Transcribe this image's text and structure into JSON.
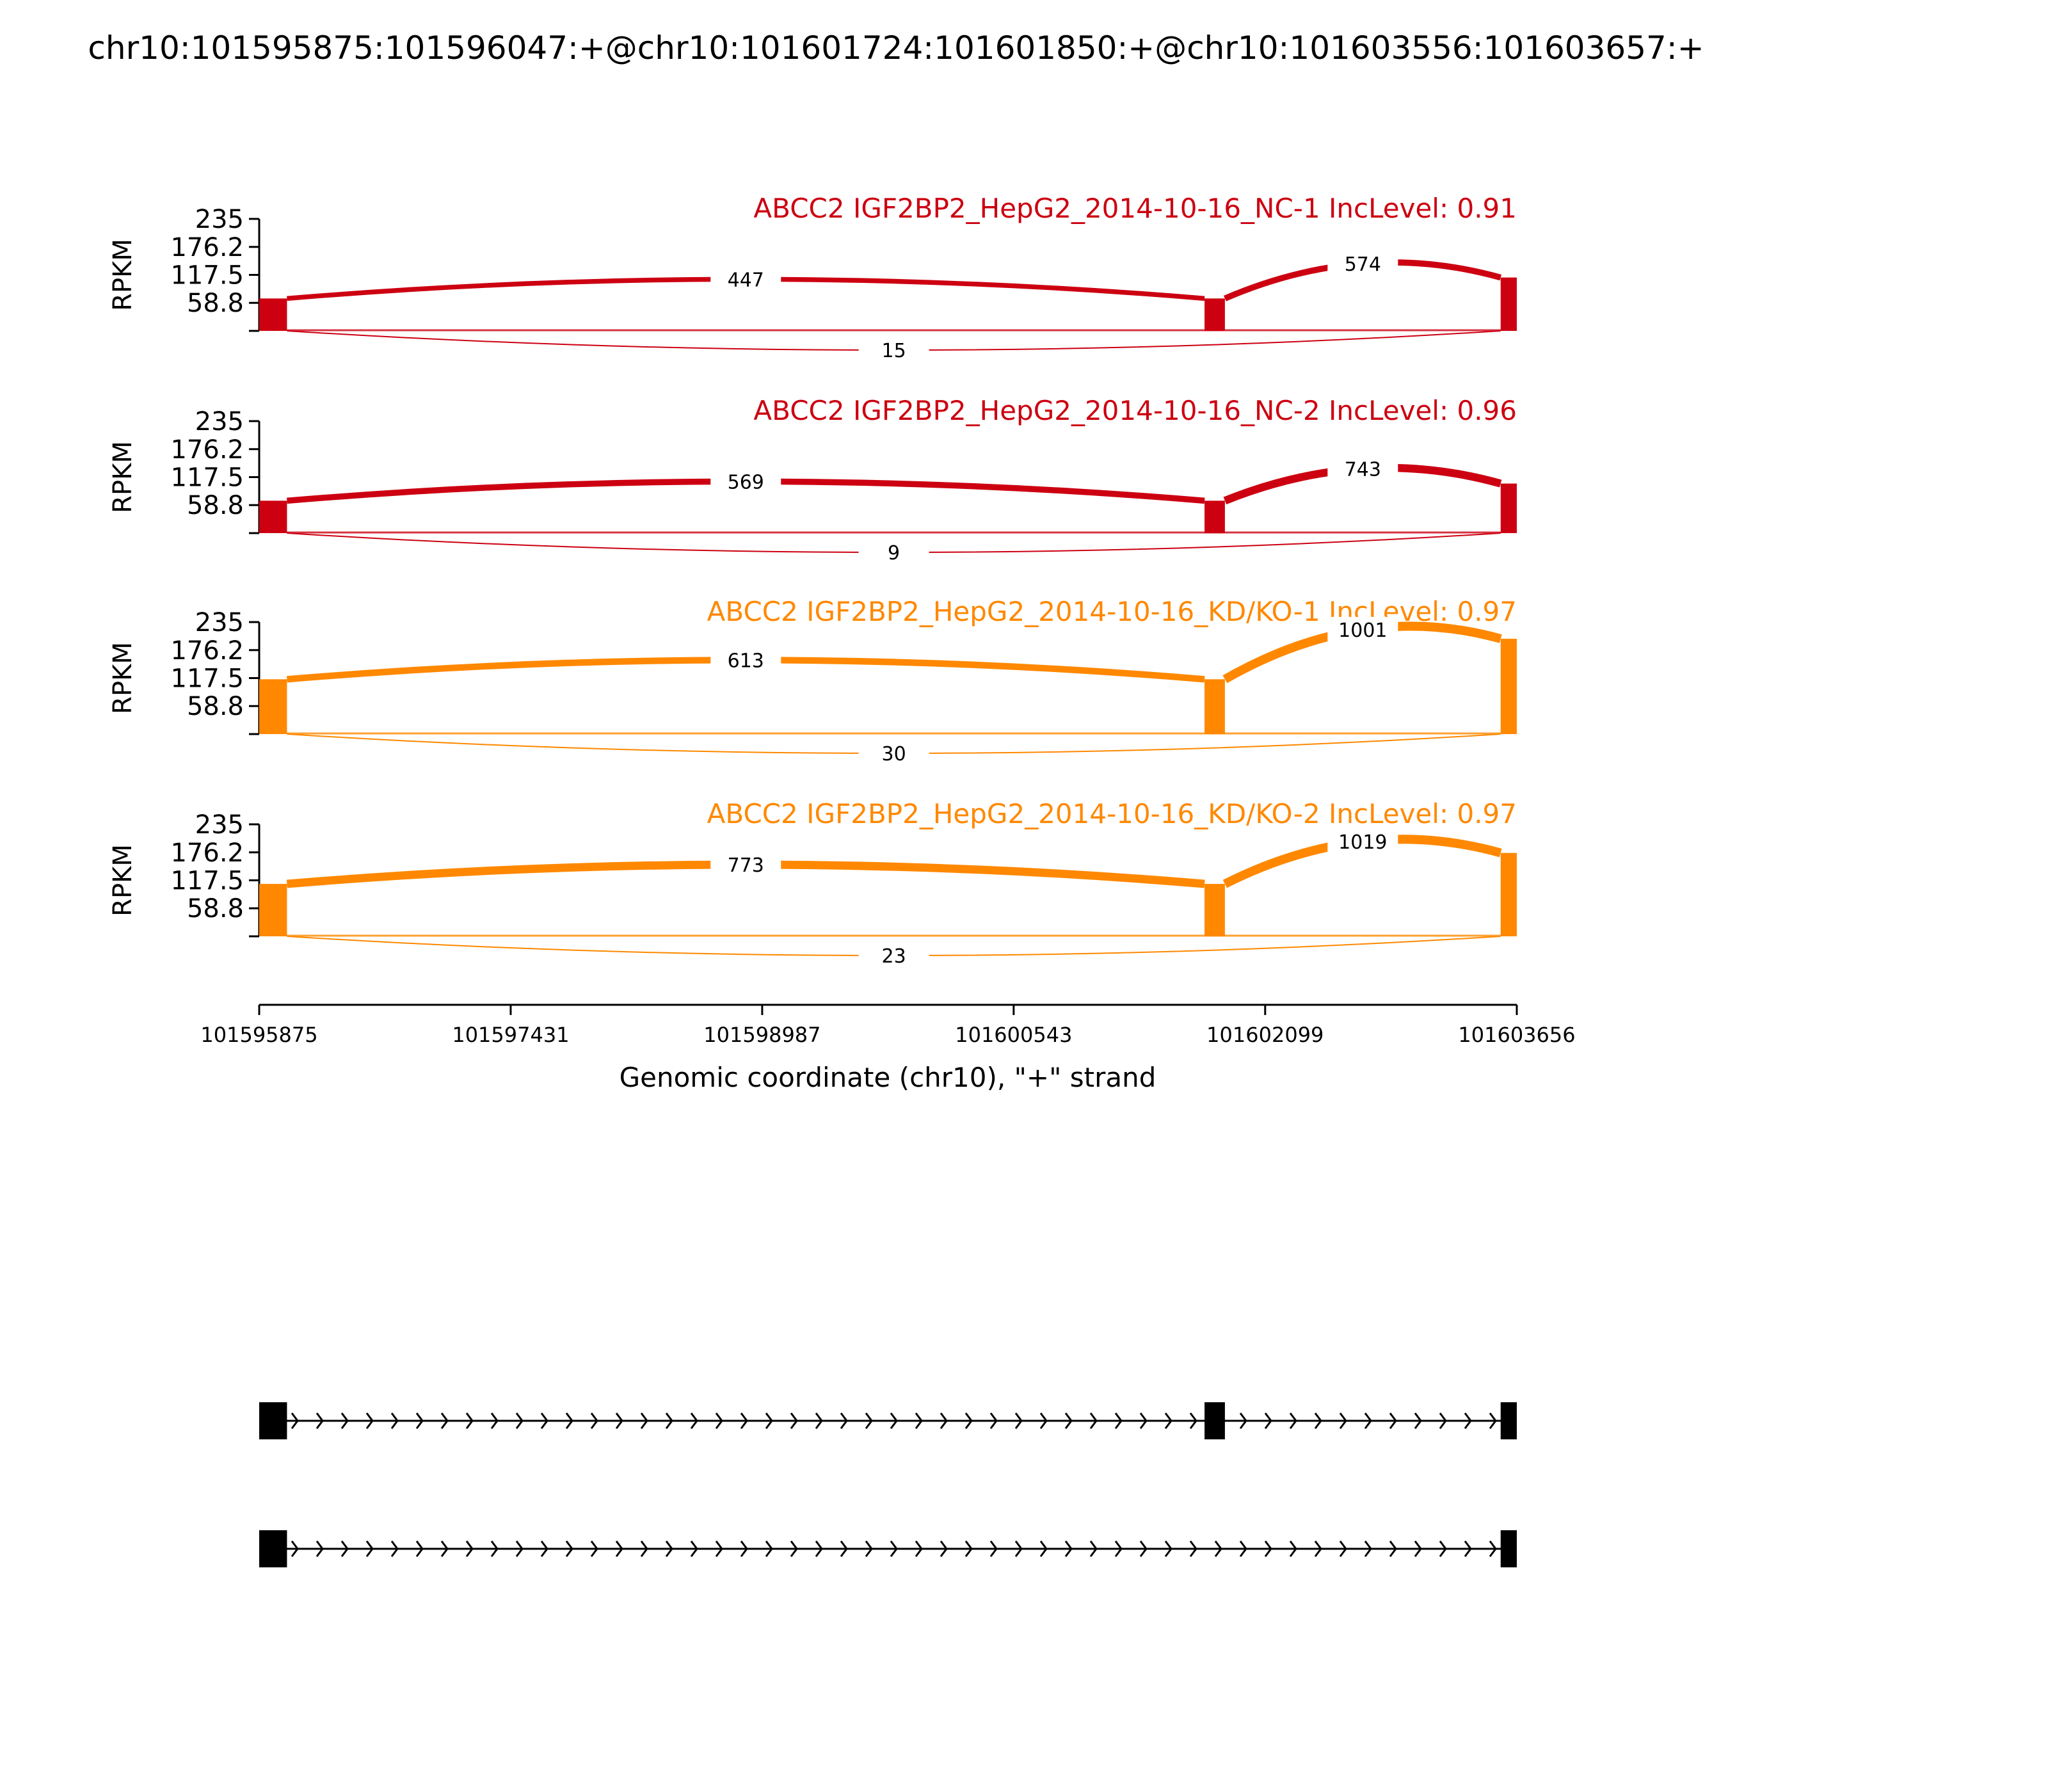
{
  "chart_data": {
    "type": "area",
    "title": "chr10:101595875:101596047:+@chr10:101601724:101601850:+@chr10:101603556:101603657:+",
    "xlabel": "Genomic coordinate (chr10), \"+\" strand",
    "ylabel": "RPKM",
    "xlim": [
      101595875,
      101603656
    ],
    "x_ticks": [
      "101595875",
      "101597431",
      "101598987",
      "101600543",
      "101602099",
      "101603656"
    ],
    "ylim": [
      0,
      235
    ],
    "y_ticks": [
      "235",
      "176.2",
      "117.5",
      "58.8"
    ],
    "exons": [
      [
        101595875,
        101596047
      ],
      [
        101601724,
        101601850
      ],
      [
        101603556,
        101603657
      ]
    ],
    "series": [
      {
        "name": "ABCC2 IGF2BP2_HepG2_2014-10-16_NC-1 IncLevel: 0.91",
        "color": "#cc0011",
        "coverage": [
          68,
          68,
          112
        ],
        "junctions": {
          "upstream": "447",
          "downstream": "574",
          "skipping": "15"
        }
      },
      {
        "name": "ABCC2 IGF2BP2_HepG2_2014-10-16_NC-2 IncLevel: 0.96",
        "color": "#cc0011",
        "coverage": [
          68,
          68,
          104
        ],
        "junctions": {
          "upstream": "569",
          "downstream": "743",
          "skipping": "9"
        }
      },
      {
        "name": "ABCC2 IGF2BP2_HepG2_2014-10-16_KD/KO-1 IncLevel: 0.97",
        "color": "#ff8800",
        "coverage": [
          115,
          115,
          200
        ],
        "junctions": {
          "upstream": "613",
          "downstream": "1001",
          "skipping": "30"
        }
      },
      {
        "name": "ABCC2 IGF2BP2_HepG2_2014-10-16_KD/KO-2 IncLevel: 0.97",
        "color": "#ff8800",
        "coverage": [
          110,
          110,
          175
        ],
        "junctions": {
          "upstream": "773",
          "downstream": "1019",
          "skipping": "23"
        }
      }
    ],
    "isoforms": [
      {
        "exons": [
          0,
          1,
          2
        ]
      },
      {
        "exons": [
          0,
          2
        ]
      }
    ]
  }
}
